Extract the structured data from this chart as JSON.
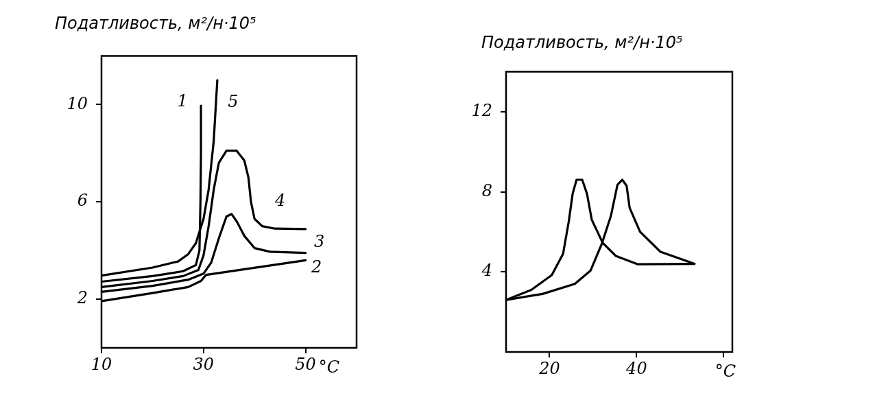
{
  "chart_data": [
    {
      "type": "line",
      "ylabel": "Податливость, м²/н·10⁵",
      "xlabel": "°C",
      "xlim": [
        10,
        60
      ],
      "ylim": [
        0,
        12
      ],
      "xticks": [
        10,
        30,
        50
      ],
      "yticks": [
        2,
        6,
        10
      ],
      "series": [
        {
          "name": "1",
          "color": "#000000",
          "x": [
            10,
            20,
            26,
            28.5,
            29.2,
            29.4,
            29.5,
            29.5
          ],
          "values": [
            2.72,
            2.95,
            3.15,
            3.4,
            4,
            6,
            8,
            9.95
          ]
        },
        {
          "name": "2",
          "color": "#000000",
          "x": [
            10,
            20,
            27,
            29.5,
            30.5,
            50
          ],
          "values": [
            1.92,
            2.25,
            2.5,
            2.75,
            3.0,
            3.6
          ]
        },
        {
          "name": "3",
          "color": "#000000",
          "x": [
            10,
            20,
            27,
            30,
            31.5,
            33,
            34.5,
            35.5,
            36.5,
            38,
            40,
            43,
            50
          ],
          "values": [
            2.3,
            2.55,
            2.8,
            3.05,
            3.5,
            4.5,
            5.4,
            5.5,
            5.2,
            4.6,
            4.1,
            3.95,
            3.9
          ]
        },
        {
          "name": "4",
          "color": "#000000",
          "x": [
            10,
            20,
            26,
            29,
            30,
            31,
            32,
            33,
            34.5,
            36.5,
            38,
            38.8,
            39.3,
            40,
            41.5,
            44,
            50
          ],
          "values": [
            2.5,
            2.75,
            2.95,
            3.2,
            3.8,
            5,
            6.5,
            7.6,
            8.1,
            8.1,
            7.7,
            7,
            6,
            5.3,
            5.0,
            4.9,
            4.88
          ]
        },
        {
          "name": "5",
          "color": "#000000",
          "x": [
            10,
            20,
            25,
            27,
            28.5,
            30,
            31,
            32,
            32.7
          ],
          "values": [
            2.97,
            3.3,
            3.55,
            3.85,
            4.3,
            5.3,
            6.5,
            8.5,
            11.0
          ]
        }
      ]
    },
    {
      "type": "line",
      "ylabel": "Податливость, м²/н·10⁵",
      "xlabel": "°C",
      "xlim": [
        10,
        62
      ],
      "ylim": [
        0,
        14
      ],
      "xticks": [
        20,
        40,
        {
          "value": 60,
          "label": null
        }
      ],
      "yticks": [
        4,
        8,
        12
      ],
      "series": [
        {
          "color": "#000000",
          "x": [
            10,
            18.4,
            25.8,
            29.4,
            32,
            34.1,
            35.6,
            36.7,
            37.7,
            38.4,
            40.8,
            45.5,
            53.3
          ],
          "values": [
            2.6,
            2.9,
            3.4,
            4.06,
            5.4,
            6.8,
            8.35,
            8.6,
            8.3,
            7.2,
            6.0,
            5.0,
            4.4
          ]
        },
        {
          "color": "#000000",
          "x": [
            53.3,
            40.3,
            35.2,
            32.2,
            29.7,
            28.6,
            27.5,
            26.2,
            25.3,
            24.4,
            23.1,
            20.5,
            15.8,
            10
          ],
          "values": [
            4.4,
            4.38,
            4.8,
            5.45,
            6.6,
            7.9,
            8.6,
            8.6,
            7.9,
            6.5,
            4.9,
            3.84,
            3.1,
            2.6
          ]
        }
      ]
    }
  ]
}
